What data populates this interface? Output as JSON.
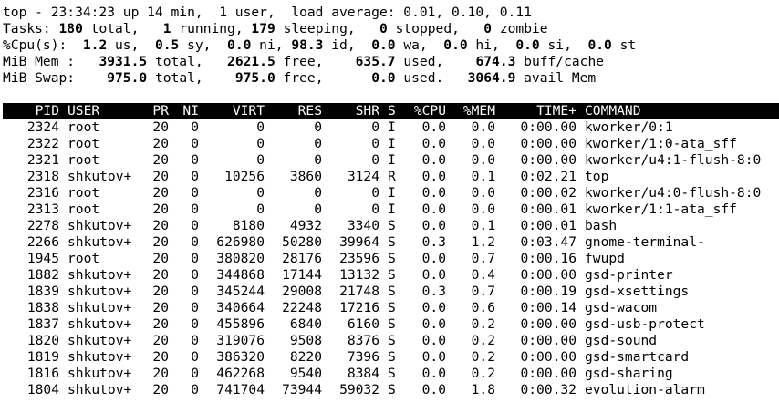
{
  "summary": {
    "line1": "top - 23:34:23 up 14 min,  1 user,  load average: 0.01, 0.10, 0.11",
    "tasks": {
      "label": "Tasks:",
      "total": "180",
      "total_label": " total,   ",
      "running": "1",
      "running_label": " running, ",
      "sleeping": "179",
      "sleeping_label": " sleeping,   ",
      "stopped": "0",
      "stopped_label": " stopped,   ",
      "zombie": "0",
      "zombie_label": " zombie"
    },
    "cpu": {
      "label": "%Cpu(s):  ",
      "us": "1.2",
      "us_label": " us,  ",
      "sy": "0.5",
      "sy_label": " sy,  ",
      "ni": "0.0",
      "ni_label": " ni, ",
      "id": "98.3",
      "id_label": " id,  ",
      "wa": "0.0",
      "wa_label": " wa,  ",
      "hi": "0.0",
      "hi_label": " hi,  ",
      "si": "0.0",
      "si_label": " si,  ",
      "st": "0.0",
      "st_label": " st"
    },
    "mem": {
      "label": "MiB Mem :   ",
      "total": "3931.5",
      "total_label": " total,   ",
      "free": "2621.5",
      "free_label": " free,    ",
      "used": "635.7",
      "used_label": " used,    ",
      "buff": "674.3",
      "buff_label": " buff/cache"
    },
    "swap": {
      "label": "MiB Swap:    ",
      "total": "975.0",
      "total_label": " total,    ",
      "free": "975.0",
      "free_label": " free,      ",
      "used": "0.0",
      "used_label": " used.   ",
      "avail": "3064.9",
      "avail_label": " avail Mem"
    }
  },
  "columns": [
    "PID",
    "USER",
    "PR",
    "NI",
    "VIRT",
    "RES",
    "SHR",
    "S",
    "%CPU",
    "%MEM",
    "TIME+",
    "COMMAND"
  ],
  "processes": [
    {
      "pid": "2324",
      "user": "root",
      "pr": "20",
      "ni": "0",
      "virt": "0",
      "res": "0",
      "shr": "0",
      "s": "I",
      "cpu": "0.0",
      "mem": "0.0",
      "time": "0:00.00",
      "cmd": "kworker/0:1"
    },
    {
      "pid": "2322",
      "user": "root",
      "pr": "20",
      "ni": "0",
      "virt": "0",
      "res": "0",
      "shr": "0",
      "s": "I",
      "cpu": "0.0",
      "mem": "0.0",
      "time": "0:00.00",
      "cmd": "kworker/1:0-ata_sff"
    },
    {
      "pid": "2321",
      "user": "root",
      "pr": "20",
      "ni": "0",
      "virt": "0",
      "res": "0",
      "shr": "0",
      "s": "I",
      "cpu": "0.0",
      "mem": "0.0",
      "time": "0:00.00",
      "cmd": "kworker/u4:1-flush-8:0"
    },
    {
      "pid": "2318",
      "user": "shkutov+",
      "pr": "20",
      "ni": "0",
      "virt": "10256",
      "res": "3860",
      "shr": "3124",
      "s": "R",
      "cpu": "0.0",
      "mem": "0.1",
      "time": "0:02.21",
      "cmd": "top"
    },
    {
      "pid": "2316",
      "user": "root",
      "pr": "20",
      "ni": "0",
      "virt": "0",
      "res": "0",
      "shr": "0",
      "s": "I",
      "cpu": "0.0",
      "mem": "0.0",
      "time": "0:00.02",
      "cmd": "kworker/u4:0-flush-8:0"
    },
    {
      "pid": "2313",
      "user": "root",
      "pr": "20",
      "ni": "0",
      "virt": "0",
      "res": "0",
      "shr": "0",
      "s": "I",
      "cpu": "0.0",
      "mem": "0.0",
      "time": "0:00.01",
      "cmd": "kworker/1:1-ata_sff"
    },
    {
      "pid": "2278",
      "user": "shkutov+",
      "pr": "20",
      "ni": "0",
      "virt": "8180",
      "res": "4932",
      "shr": "3340",
      "s": "S",
      "cpu": "0.0",
      "mem": "0.1",
      "time": "0:00.01",
      "cmd": "bash"
    },
    {
      "pid": "2266",
      "user": "shkutov+",
      "pr": "20",
      "ni": "0",
      "virt": "626980",
      "res": "50280",
      "shr": "39964",
      "s": "S",
      "cpu": "0.3",
      "mem": "1.2",
      "time": "0:03.47",
      "cmd": "gnome-terminal-"
    },
    {
      "pid": "1945",
      "user": "root",
      "pr": "20",
      "ni": "0",
      "virt": "380820",
      "res": "28176",
      "shr": "23596",
      "s": "S",
      "cpu": "0.0",
      "mem": "0.7",
      "time": "0:00.16",
      "cmd": "fwupd"
    },
    {
      "pid": "1882",
      "user": "shkutov+",
      "pr": "20",
      "ni": "0",
      "virt": "344868",
      "res": "17144",
      "shr": "13132",
      "s": "S",
      "cpu": "0.0",
      "mem": "0.4",
      "time": "0:00.00",
      "cmd": "gsd-printer"
    },
    {
      "pid": "1839",
      "user": "shkutov+",
      "pr": "20",
      "ni": "0",
      "virt": "345244",
      "res": "29008",
      "shr": "21748",
      "s": "S",
      "cpu": "0.3",
      "mem": "0.7",
      "time": "0:00.19",
      "cmd": "gsd-xsettings"
    },
    {
      "pid": "1838",
      "user": "shkutov+",
      "pr": "20",
      "ni": "0",
      "virt": "340664",
      "res": "22248",
      "shr": "17216",
      "s": "S",
      "cpu": "0.0",
      "mem": "0.6",
      "time": "0:00.14",
      "cmd": "gsd-wacom"
    },
    {
      "pid": "1837",
      "user": "shkutov+",
      "pr": "20",
      "ni": "0",
      "virt": "455896",
      "res": "6840",
      "shr": "6160",
      "s": "S",
      "cpu": "0.0",
      "mem": "0.2",
      "time": "0:00.00",
      "cmd": "gsd-usb-protect"
    },
    {
      "pid": "1820",
      "user": "shkutov+",
      "pr": "20",
      "ni": "0",
      "virt": "319076",
      "res": "9508",
      "shr": "8376",
      "s": "S",
      "cpu": "0.0",
      "mem": "0.2",
      "time": "0:00.00",
      "cmd": "gsd-sound"
    },
    {
      "pid": "1819",
      "user": "shkutov+",
      "pr": "20",
      "ni": "0",
      "virt": "386320",
      "res": "8220",
      "shr": "7396",
      "s": "S",
      "cpu": "0.0",
      "mem": "0.2",
      "time": "0:00.00",
      "cmd": "gsd-smartcard"
    },
    {
      "pid": "1816",
      "user": "shkutov+",
      "pr": "20",
      "ni": "0",
      "virt": "462268",
      "res": "9540",
      "shr": "8384",
      "s": "S",
      "cpu": "0.0",
      "mem": "0.2",
      "time": "0:00.00",
      "cmd": "gsd-sharing"
    },
    {
      "pid": "1804",
      "user": "shkutov+",
      "pr": "20",
      "ni": "0",
      "virt": "741704",
      "res": "73944",
      "shr": "59032",
      "s": "S",
      "cpu": "0.0",
      "mem": "1.8",
      "time": "0:00.32",
      "cmd": "evolution-alarm"
    }
  ]
}
